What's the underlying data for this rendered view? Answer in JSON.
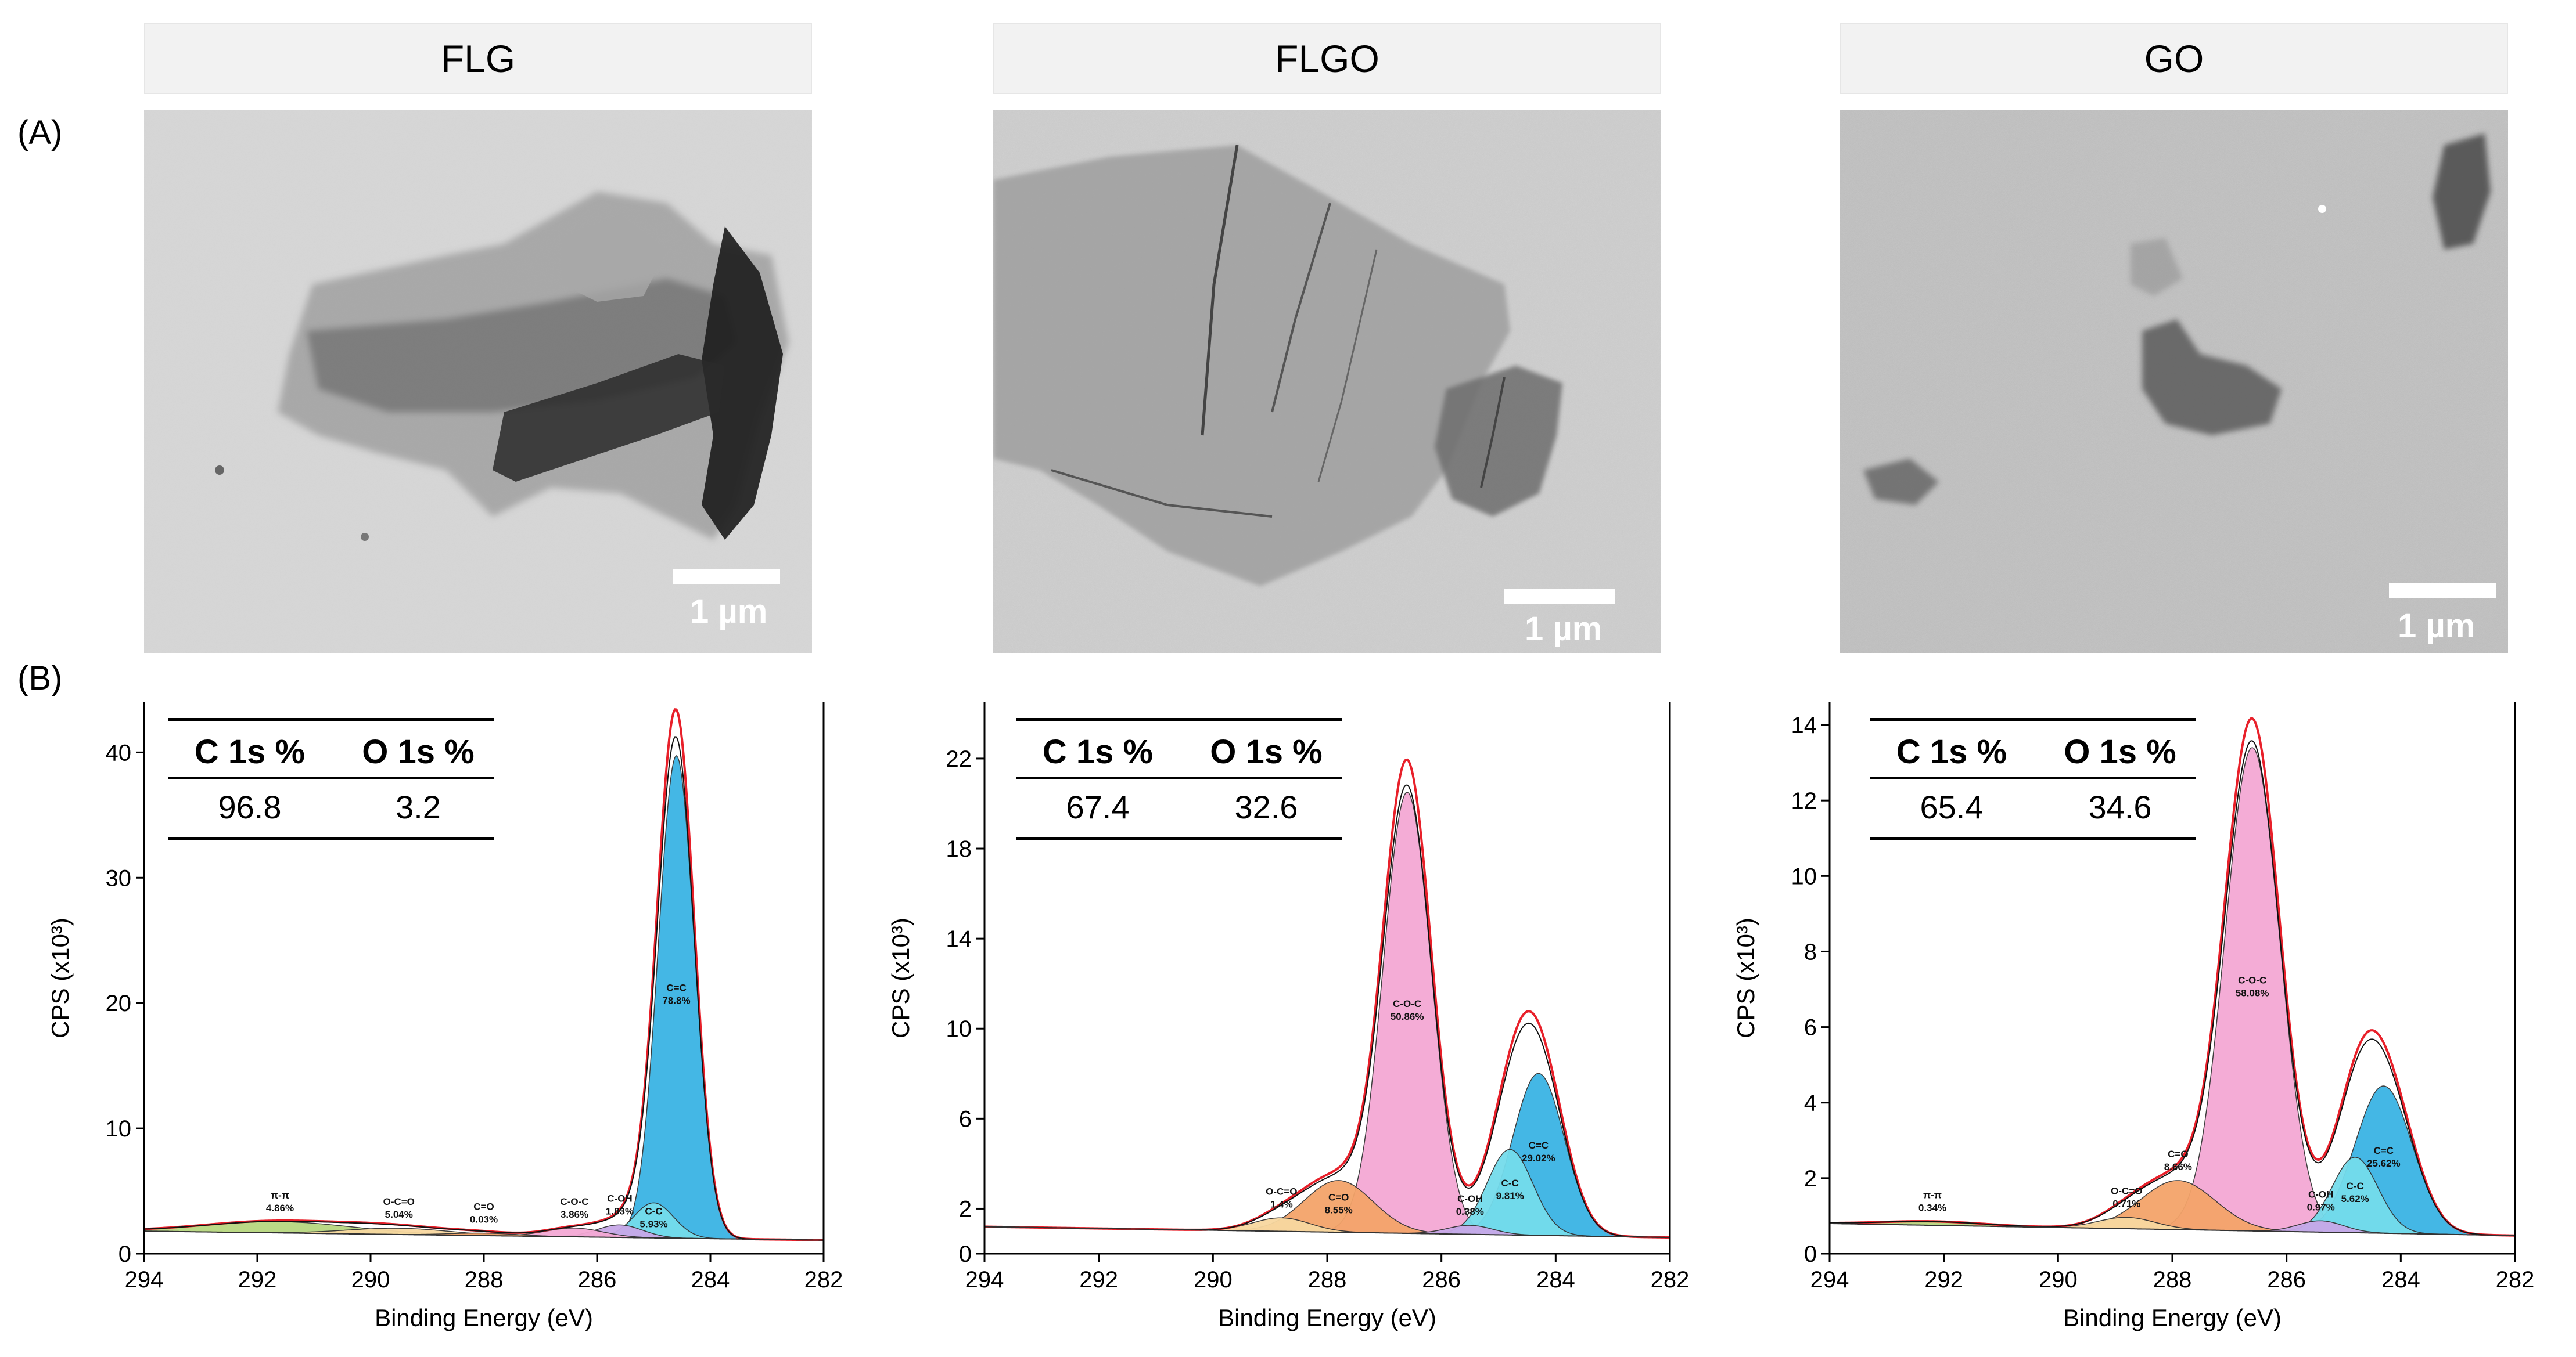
{
  "figure": {
    "panel_a_label": "(A)",
    "panel_b_label": "(B)"
  },
  "samples": [
    {
      "name": "FLG",
      "scale_label": "1 µm",
      "table": {
        "headers": [
          "C 1s %",
          "O 1s %"
        ],
        "values": [
          "96.8",
          "3.2"
        ]
      }
    },
    {
      "name": "FLGO",
      "scale_label": "1 µm",
      "table": {
        "headers": [
          "C 1s %",
          "O 1s %"
        ],
        "values": [
          "67.4",
          "32.6"
        ]
      }
    },
    {
      "name": "GO",
      "scale_label": "1 µm",
      "table": {
        "headers": [
          "C 1s %",
          "O 1s %"
        ],
        "values": [
          "65.4",
          "34.6"
        ]
      }
    }
  ],
  "colors": {
    "envelope": "#e8202a",
    "c_eq_c": "#3ab4e4",
    "c_c": "#74dcec",
    "c_o_c": "#f4a8d4",
    "c_eq_o": "#f4a46a",
    "c_oh": "#c8a8e8",
    "pi_pi": "#b8d880",
    "o_c_eq_o": "#f8d8a0"
  },
  "chart_data": [
    {
      "type": "area",
      "title": "FLG",
      "xlabel": "Binding Energy (eV)",
      "ylabel": "CPS (x10³)",
      "xlim": [
        294,
        282
      ],
      "ylim": [
        0,
        44
      ],
      "xticks": [
        294,
        292,
        290,
        288,
        286,
        284,
        282
      ],
      "yticks": [
        0,
        10,
        20,
        30,
        40
      ],
      "background": 1.8,
      "peaks": [
        {
          "name": "C=C",
          "percent": "78.8%",
          "center": 284.6,
          "height": 38.5,
          "sigma": 0.32,
          "color_key": "c_eq_c"
        },
        {
          "name": "C-C",
          "percent": "5.93%",
          "center": 285.0,
          "height": 2.8,
          "sigma": 0.35,
          "color_key": "c_c"
        },
        {
          "name": "C-OH",
          "percent": "1.83%",
          "center": 285.6,
          "height": 1.0,
          "sigma": 0.4,
          "color_key": "c_oh"
        },
        {
          "name": "C-O-C",
          "percent": "3.86%",
          "center": 286.4,
          "height": 0.7,
          "sigma": 0.5,
          "color_key": "c_o_c"
        },
        {
          "name": "C=O",
          "percent": "0.03%",
          "center": 288.0,
          "height": 0.2,
          "sigma": 0.6,
          "color_key": "c_eq_o"
        },
        {
          "name": "O-C=O",
          "percent": "5.04%",
          "center": 289.5,
          "height": 0.5,
          "sigma": 0.9,
          "color_key": "o_c_eq_o"
        },
        {
          "name": "π-π",
          "percent": "4.86%",
          "center": 291.6,
          "height": 0.9,
          "sigma": 1.3,
          "color_key": "pi_pi"
        }
      ],
      "envelope_peak": 43.5
    },
    {
      "type": "area",
      "title": "FLGO",
      "xlabel": "Binding Energy (eV)",
      "ylabel": "CPS (x10³)",
      "xlim": [
        294,
        282
      ],
      "ylim": [
        0,
        24.5
      ],
      "xticks": [
        294,
        292,
        290,
        288,
        286,
        284,
        282
      ],
      "yticks": [
        0,
        2,
        6,
        10,
        14,
        18,
        22
      ],
      "background": 1.2,
      "peaks": [
        {
          "name": "C-O-C",
          "percent": "50.86%",
          "center": 286.6,
          "height": 19.6,
          "sigma": 0.42,
          "color_key": "c_o_c"
        },
        {
          "name": "C=C",
          "percent": "29.02%",
          "center": 284.3,
          "height": 7.2,
          "sigma": 0.45,
          "color_key": "c_eq_c"
        },
        {
          "name": "C-C",
          "percent": "9.81%",
          "center": 284.8,
          "height": 3.8,
          "sigma": 0.4,
          "color_key": "c_c"
        },
        {
          "name": "C-OH",
          "percent": "0.38%",
          "center": 285.5,
          "height": 0.4,
          "sigma": 0.4,
          "color_key": "c_oh"
        },
        {
          "name": "C=O",
          "percent": "8.55%",
          "center": 287.8,
          "height": 2.3,
          "sigma": 0.6,
          "color_key": "c_eq_o"
        },
        {
          "name": "O-C=O",
          "percent": "1.4%",
          "center": 288.8,
          "height": 0.6,
          "sigma": 0.5,
          "color_key": "o_c_eq_o"
        }
      ],
      "envelope_peak": 22.0
    },
    {
      "type": "area",
      "title": "GO",
      "xlabel": "Binding Energy (eV)",
      "ylabel": "CPS (x10³)",
      "xlim": [
        294,
        282
      ],
      "ylim": [
        0,
        14.6
      ],
      "xticks": [
        294,
        292,
        290,
        288,
        286,
        284,
        282
      ],
      "yticks": [
        0,
        2,
        4,
        6,
        8,
        10,
        12,
        14
      ],
      "background": 0.8,
      "peaks": [
        {
          "name": "C-O-C",
          "percent": "58.08%",
          "center": 286.6,
          "height": 12.8,
          "sigma": 0.48,
          "color_key": "c_o_c"
        },
        {
          "name": "C=C",
          "percent": "25.62%",
          "center": 284.3,
          "height": 3.9,
          "sigma": 0.5,
          "color_key": "c_eq_c"
        },
        {
          "name": "C-C",
          "percent": "5.62%",
          "center": 284.8,
          "height": 2.0,
          "sigma": 0.4,
          "color_key": "c_c"
        },
        {
          "name": "C-OH",
          "percent": "0.97%",
          "center": 285.4,
          "height": 0.3,
          "sigma": 0.4,
          "color_key": "c_oh"
        },
        {
          "name": "C=O",
          "percent": "8.66%",
          "center": 287.9,
          "height": 1.3,
          "sigma": 0.65,
          "color_key": "c_eq_o"
        },
        {
          "name": "O-C=O",
          "percent": "0.71%",
          "center": 288.8,
          "height": 0.3,
          "sigma": 0.5,
          "color_key": "o_c_eq_o"
        },
        {
          "name": "π-π",
          "percent": "0.34%",
          "center": 292.2,
          "height": 0.1,
          "sigma": 0.9,
          "color_key": "pi_pi"
        }
      ],
      "envelope_peak": 14.2
    }
  ]
}
